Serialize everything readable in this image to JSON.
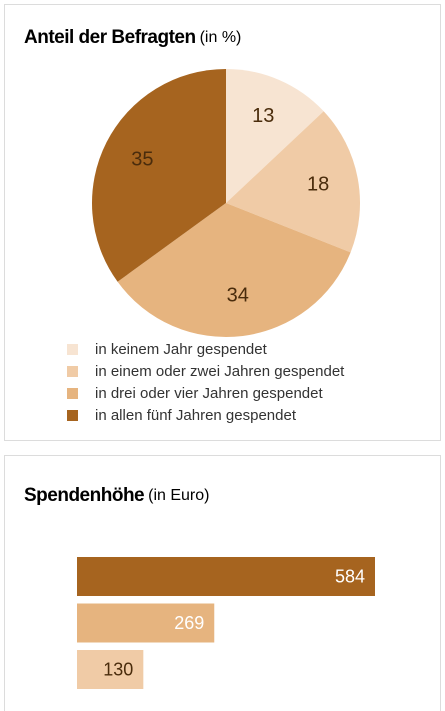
{
  "chart_data": [
    {
      "type": "pie",
      "title": "Anteil der Befragten",
      "unit": "(in %)",
      "categories": [
        "in keinem Jahr gespendet",
        "in einem oder zwei Jahren gespendet",
        "in drei oder vier Jahren gespendet",
        "in allen fünf Jahren gespendet"
      ],
      "values": [
        13,
        18,
        34,
        35
      ],
      "colors": [
        "#f7e4d2",
        "#f0cba6",
        "#e6b47f",
        "#a6641f"
      ]
    },
    {
      "type": "hbar",
      "title": "Spendenhöhe",
      "unit": "(in Euro)",
      "categories": [
        null,
        null,
        null
      ],
      "values": [
        584,
        269,
        130
      ],
      "colors": [
        "#a6641f",
        "#e6b47f",
        "#f0cba6"
      ]
    }
  ]
}
